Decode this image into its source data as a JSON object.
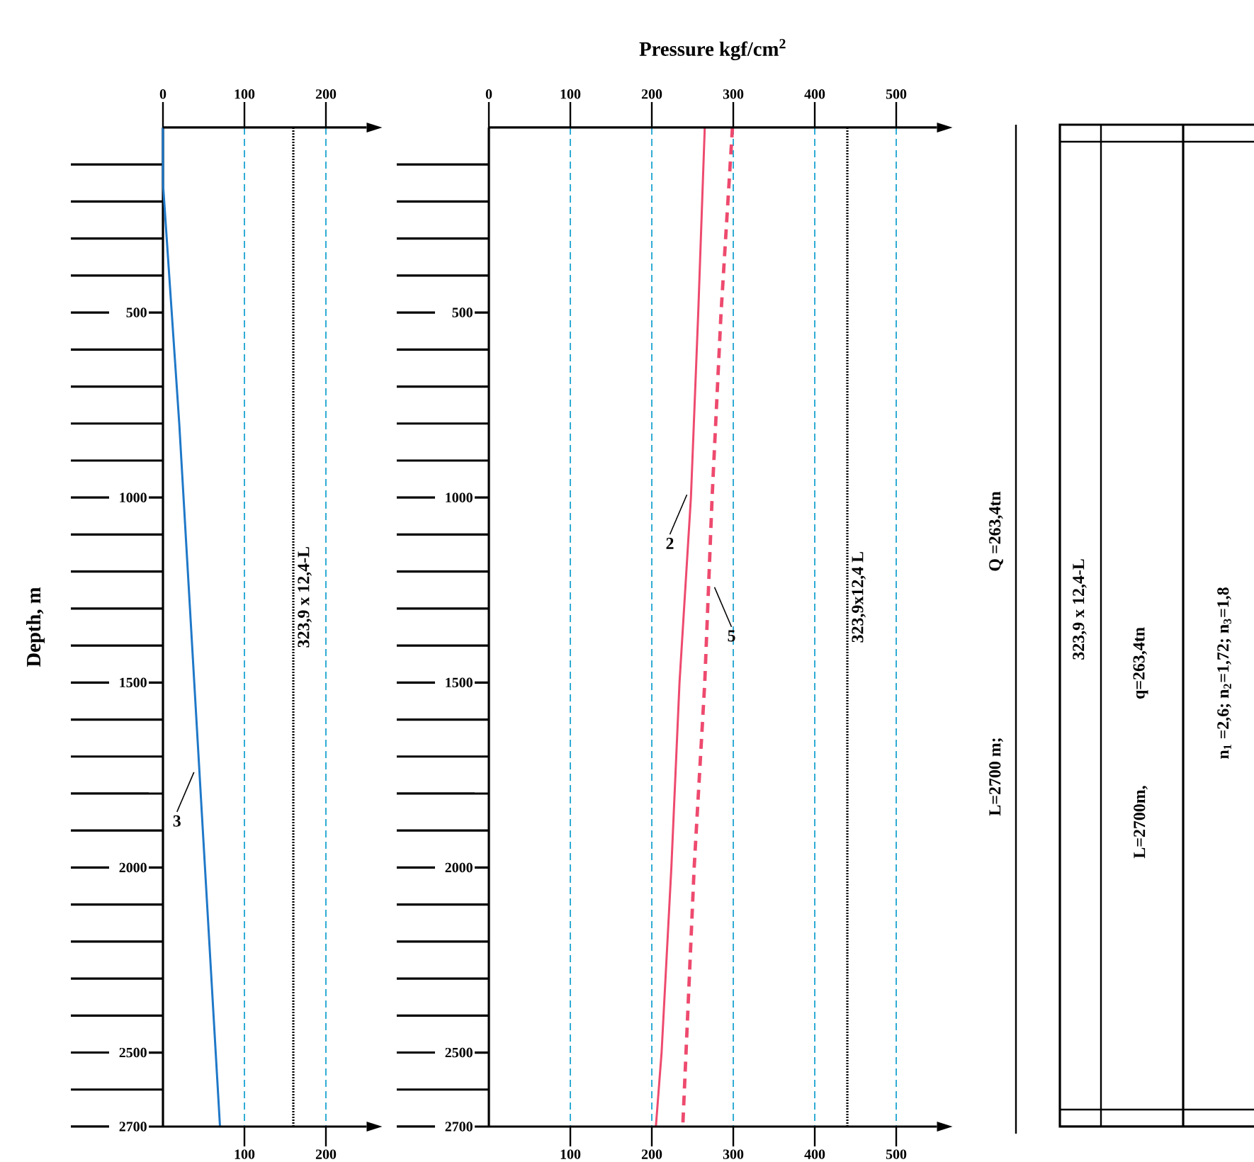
{
  "chart_data": [
    {
      "type": "line",
      "ylabel": "Depth, m",
      "marker": "none",
      "xlim": [
        0,
        250
      ],
      "xticks": [
        100,
        200
      ],
      "x2lim": [
        0,
        250
      ],
      "x2ticks": [
        0,
        100,
        200
      ],
      "ylim": [
        2700,
        0
      ],
      "yticks": [
        {
          "value": 100,
          "label": null
        },
        {
          "value": 200,
          "label": null
        },
        {
          "value": 300,
          "label": null
        },
        {
          "value": 400,
          "label": null
        },
        500,
        {
          "value": 600,
          "label": null
        },
        {
          "value": 700,
          "label": null
        },
        {
          "value": 800,
          "label": null
        },
        {
          "value": 900,
          "label": null
        },
        1000,
        {
          "value": 1100,
          "label": null
        },
        {
          "value": 1200,
          "label": null
        },
        {
          "value": 1300,
          "label": null
        },
        {
          "value": 1400,
          "label": null
        },
        1500,
        {
          "value": 1600,
          "label": null
        },
        {
          "value": 1700,
          "label": null
        },
        {
          "value": 1800,
          "label": null
        },
        {
          "value": 1900,
          "label": null
        },
        2000,
        {
          "value": 2100,
          "label": null
        },
        {
          "value": 2200,
          "label": null
        },
        {
          "value": 2300,
          "label": null
        },
        {
          "value": 2400,
          "label": null
        },
        2500,
        {
          "value": 2600,
          "label": null
        },
        2700
      ],
      "series": [
        {
          "color": "#1f78c8",
          "line_style": "solid",
          "x": [
            0,
            0,
            20,
            45,
            70
          ],
          "values": [
            0,
            150,
            800,
            1750,
            2700
          ]
        }
      ],
      "ref_lines": [
        {
          "axis": "x",
          "value": 100,
          "color": "#1aa3d0",
          "line_style": "dashed"
        },
        {
          "axis": "x",
          "value": 160,
          "color": "#000000",
          "line_style": "dotted",
          "label": "323,9 x 12,4-L"
        },
        {
          "axis": "x",
          "value": 200,
          "color": "#1aa3d0",
          "line_style": "dashed"
        }
      ],
      "annotations": [
        {
          "text": "3",
          "x": 45,
          "y": 1750
        }
      ]
    },
    {
      "type": "line",
      "title": "Pressure kgf/cm$^{2}$",
      "marker": "none",
      "xlim": [
        0,
        550
      ],
      "xticks": [
        100,
        200,
        300,
        400,
        500
      ],
      "x2lim": [
        0,
        550
      ],
      "x2ticks": [
        0,
        100,
        200,
        300,
        400,
        500
      ],
      "ylim": [
        2700,
        0
      ],
      "yticks": [
        {
          "value": 100,
          "label": null
        },
        {
          "value": 200,
          "label": null
        },
        {
          "value": 300,
          "label": null
        },
        {
          "value": 400,
          "label": null
        },
        500,
        {
          "value": 600,
          "label": null
        },
        {
          "value": 700,
          "label": null
        },
        {
          "value": 800,
          "label": null
        },
        {
          "value": 900,
          "label": null
        },
        1000,
        {
          "value": 1100,
          "label": null
        },
        {
          "value": 1200,
          "label": null
        },
        {
          "value": 1300,
          "label": null
        },
        {
          "value": 1400,
          "label": null
        },
        1500,
        {
          "value": 1600,
          "label": null
        },
        {
          "value": 1700,
          "label": null
        },
        {
          "value": 1800,
          "label": null
        },
        {
          "value": 1900,
          "label": null
        },
        2000,
        {
          "value": 2100,
          "label": null
        },
        {
          "value": 2200,
          "label": null
        },
        {
          "value": 2300,
          "label": null
        },
        {
          "value": 2400,
          "label": null
        },
        2500,
        {
          "value": 2600,
          "label": null
        },
        2700
      ],
      "series": [
        {
          "color": "#ee4a6e",
          "line_style": "solid",
          "x": [
            265,
            257,
            248,
            234,
            224,
            212,
            205
          ],
          "values": [
            0,
            500,
            1000,
            1500,
            2000,
            2500,
            2700
          ]
        },
        {
          "color": "#ee4a6e",
          "line_style": "dashed",
          "x": [
            299,
            285,
            274,
            265,
            252,
            238
          ],
          "values": [
            0,
            500,
            1000,
            1500,
            2000,
            2700
          ]
        }
      ],
      "ref_lines": [
        {
          "axis": "x",
          "value": 100,
          "color": "#1aa3d0",
          "line_style": "dashed"
        },
        {
          "axis": "x",
          "value": 200,
          "color": "#1aa3d0",
          "line_style": "dashed"
        },
        {
          "axis": "x",
          "value": 300,
          "color": "#1aa3d0",
          "line_style": "dashed"
        },
        {
          "axis": "x",
          "value": 400,
          "color": "#1aa3d0",
          "line_style": "dashed"
        },
        {
          "axis": "x",
          "value": 440,
          "color": "#000000",
          "line_style": "dotted",
          "label": "323,9x12,4 L"
        },
        {
          "axis": "x",
          "value": 500,
          "color": "#1aa3d0",
          "line_style": "dashed"
        }
      ],
      "annotations": [
        {
          "text": "2",
          "x": 250,
          "y": 1000
        },
        {
          "text": "5",
          "x": 270,
          "y": 1250
        }
      ]
    },
    {
      "type": "other",
      "annotations": [
        "L=2700 m;",
        "Q =263,4tn",
        "323,9 x 12,4-L",
        "L=2700m,",
        "q=263,4tn",
        "n$_{1}$ =2,6;  n$_{2}$=1,72;  n$_{3}$=1,8"
      ]
    }
  ]
}
